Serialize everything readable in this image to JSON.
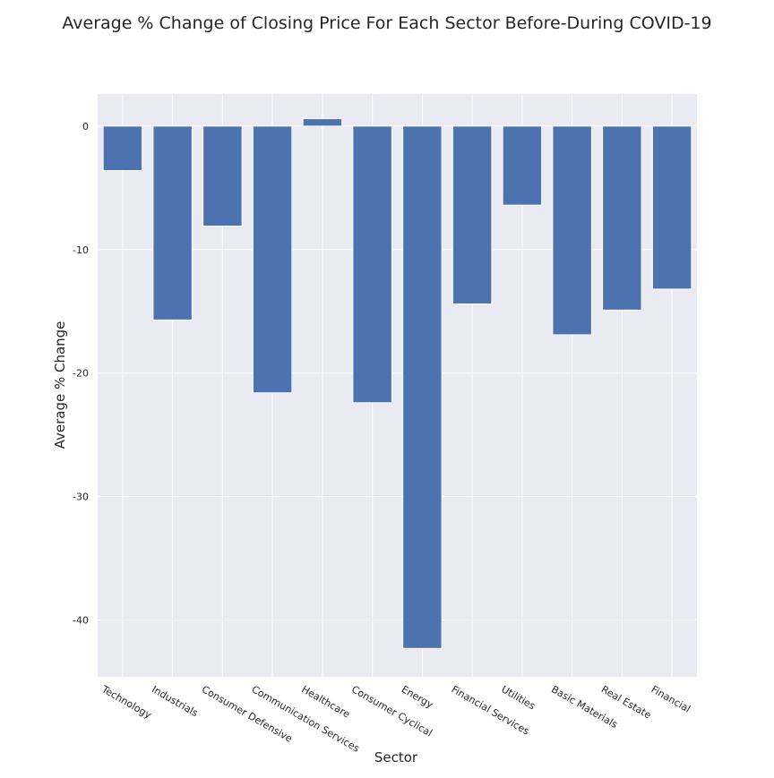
{
  "chart_data": {
    "type": "bar",
    "title": "Average % Change of Closing Price For Each Sector Before-During COVID-19",
    "xlabel": "Sector",
    "ylabel": "Average % Change",
    "categories": [
      "Technology",
      "Industrials",
      "Consumer Defensive",
      "Communication Services",
      "Healthcare",
      "Consumer Cyclical",
      "Energy",
      "Financial Services",
      "Utilities",
      "Basic Materials",
      "Real Estate",
      "Financial"
    ],
    "values": [
      -3.6,
      -15.7,
      -8.1,
      -21.6,
      0.6,
      -22.4,
      -42.3,
      -14.4,
      -6.4,
      -16.9,
      -14.9,
      -13.2
    ],
    "ylim": [
      -44.6,
      2.6
    ],
    "yticks": [
      0,
      -10,
      -20,
      -30,
      -40
    ],
    "grid": true,
    "bar_color": "#4c72b0",
    "background_color": "#eaeaf2"
  }
}
